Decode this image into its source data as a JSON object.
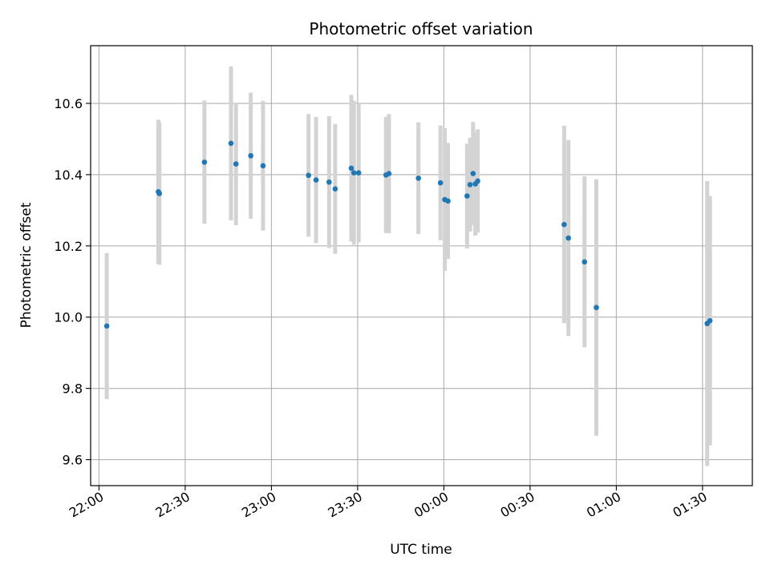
{
  "chart_data": {
    "type": "scatter",
    "title": "Photometric offset variation",
    "xlabel": "UTC time",
    "ylabel": "Photometric offset",
    "x_axis": {
      "kind": "datetime",
      "range": [
        "2000-01-01T21:57:06",
        "2000-01-02T01:47:20"
      ],
      "ticks": [
        "2000-01-01T22:00:00",
        "2000-01-01T22:30:00",
        "2000-01-01T23:00:00",
        "2000-01-01T23:30:00",
        "2000-01-02T00:00:00",
        "2000-01-02T00:30:00",
        "2000-01-02T01:00:00",
        "2000-01-02T01:30:00"
      ],
      "tick_labels": [
        "22:00",
        "22:30",
        "23:00",
        "23:30",
        "00:00",
        "00:30",
        "01:00",
        "01:30"
      ]
    },
    "y_axis": {
      "range": [
        9.527,
        10.762
      ],
      "ticks": [
        9.6,
        9.8,
        10.0,
        10.2,
        10.4,
        10.6
      ],
      "tick_labels": [
        "9.6",
        "9.8",
        "10.0",
        "10.2",
        "10.4",
        "10.6"
      ]
    },
    "grid": true,
    "marker_color": "#1f77b4",
    "errorbar_color": "#d3d3d3",
    "points": [
      {
        "x": "2000-01-01T22:02:43",
        "y": 9.975,
        "err": 0.205
      },
      {
        "x": "2000-01-01T22:20:40",
        "y": 10.352,
        "err": 0.202
      },
      {
        "x": "2000-01-01T22:21:01",
        "y": 10.347,
        "err": 0.2
      },
      {
        "x": "2000-01-01T22:36:42",
        "y": 10.435,
        "err": 0.173
      },
      {
        "x": "2000-01-01T22:45:56",
        "y": 10.488,
        "err": 0.216
      },
      {
        "x": "2000-01-01T22:47:40",
        "y": 10.43,
        "err": 0.172
      },
      {
        "x": "2000-01-01T22:52:49",
        "y": 10.453,
        "err": 0.177
      },
      {
        "x": "2000-01-01T22:57:05",
        "y": 10.425,
        "err": 0.182
      },
      {
        "x": "2000-01-01T23:12:55",
        "y": 10.398,
        "err": 0.172
      },
      {
        "x": "2000-01-01T23:15:32",
        "y": 10.385,
        "err": 0.177
      },
      {
        "x": "2000-01-01T23:20:04",
        "y": 10.379,
        "err": 0.185
      },
      {
        "x": "2000-01-01T23:22:11",
        "y": 10.36,
        "err": 0.182
      },
      {
        "x": "2000-01-01T23:27:48",
        "y": 10.418,
        "err": 0.206
      },
      {
        "x": "2000-01-01T23:28:41",
        "y": 10.405,
        "err": 0.202
      },
      {
        "x": "2000-01-01T23:30:21",
        "y": 10.405,
        "err": 0.195
      },
      {
        "x": "2000-01-01T23:39:52",
        "y": 10.399,
        "err": 0.163
      },
      {
        "x": "2000-01-01T23:40:53",
        "y": 10.403,
        "err": 0.167
      },
      {
        "x": "2000-01-01T23:51:09",
        "y": 10.39,
        "err": 0.157
      },
      {
        "x": "2000-01-01T23:58:49",
        "y": 10.377,
        "err": 0.161
      },
      {
        "x": "2000-01-02T00:00:20",
        "y": 10.33,
        "err": 0.2
      },
      {
        "x": "2000-01-02T00:01:26",
        "y": 10.326,
        "err": 0.163
      },
      {
        "x": "2000-01-02T00:08:05",
        "y": 10.34,
        "err": 0.147
      },
      {
        "x": "2000-01-02T00:09:07",
        "y": 10.372,
        "err": 0.132
      },
      {
        "x": "2000-01-02T00:10:10",
        "y": 10.403,
        "err": 0.145
      },
      {
        "x": "2000-01-02T00:10:58",
        "y": 10.374,
        "err": 0.145
      },
      {
        "x": "2000-01-02T00:11:46",
        "y": 10.382,
        "err": 0.145
      },
      {
        "x": "2000-01-02T00:41:51",
        "y": 10.26,
        "err": 0.277
      },
      {
        "x": "2000-01-02T00:43:20",
        "y": 10.222,
        "err": 0.275
      },
      {
        "x": "2000-01-02T00:48:56",
        "y": 10.155,
        "err": 0.24
      },
      {
        "x": "2000-01-02T00:53:03",
        "y": 10.027,
        "err": 0.36
      },
      {
        "x": "2000-01-02T01:31:37",
        "y": 9.982,
        "err": 0.4
      },
      {
        "x": "2000-01-02T01:32:35",
        "y": 9.99,
        "err": 0.35
      }
    ]
  }
}
